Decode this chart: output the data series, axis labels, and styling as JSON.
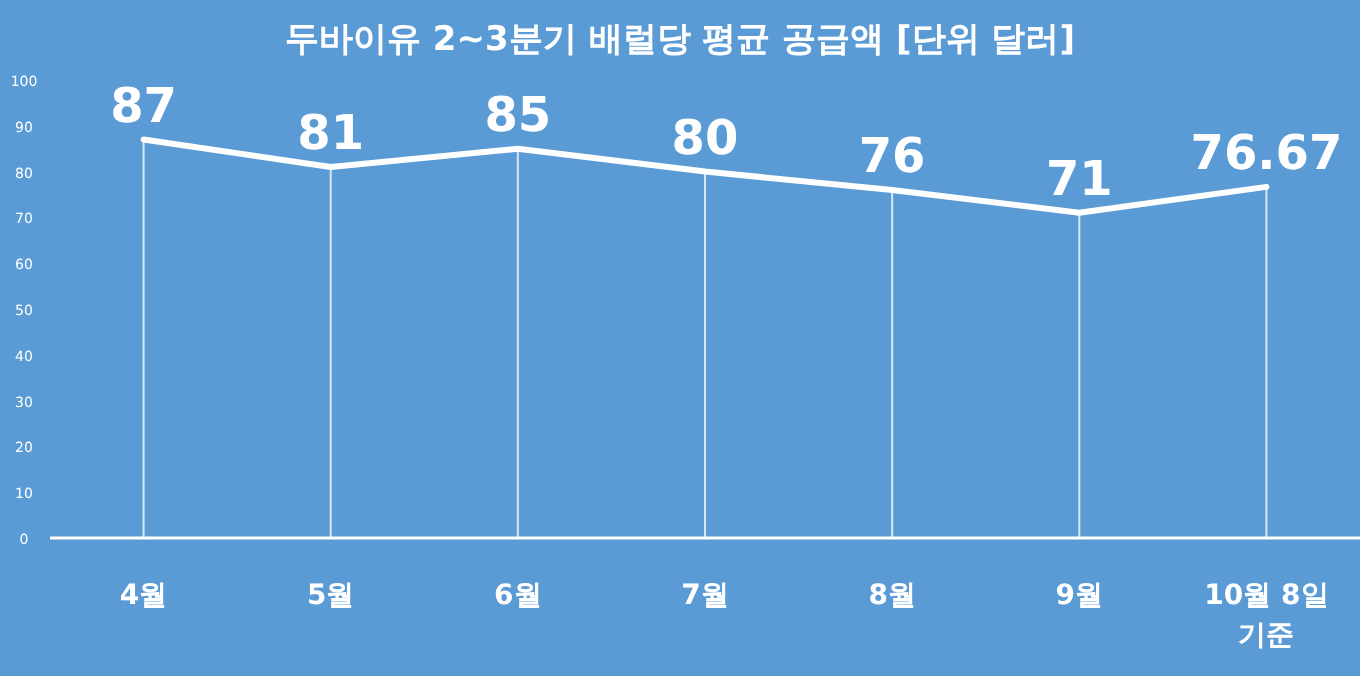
{
  "chart_data": {
    "type": "line",
    "title": "두바이유 2~3분기 배럴당 평균 공급액 [단위 달러]",
    "categories": [
      "4월",
      "5월",
      "6월",
      "7월",
      "8월",
      "9월",
      "10월 8일 기준"
    ],
    "series": [
      {
        "color": "#ffffff",
        "values": [
          87,
          81,
          85,
          80,
          76,
          71,
          76.67
        ]
      }
    ],
    "ylim": [
      0,
      100
    ],
    "yticks": [
      0,
      10,
      20,
      30,
      40,
      50,
      60,
      70,
      80,
      90,
      100
    ],
    "grid": "x",
    "data_labels": true,
    "marker": "none",
    "line_style": "solid"
  }
}
